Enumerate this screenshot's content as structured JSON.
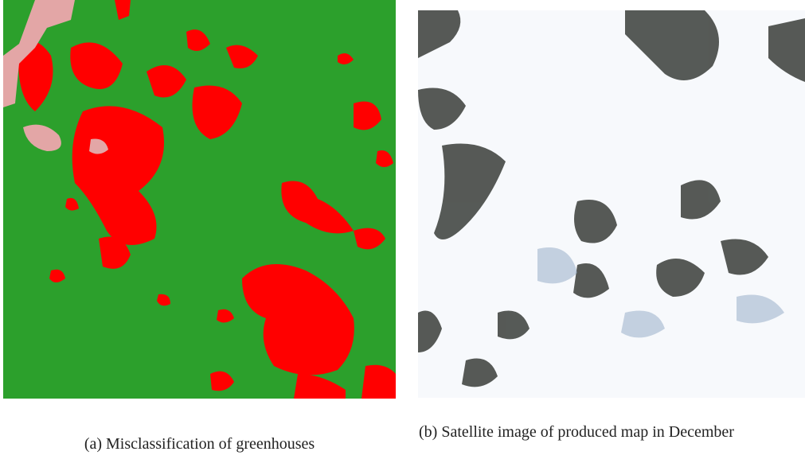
{
  "figures": [
    {
      "label": "(a)",
      "caption": "Misclassification of greenhouses"
    },
    {
      "label": "(b)",
      "caption": "Satellite image of produced map in December"
    }
  ]
}
